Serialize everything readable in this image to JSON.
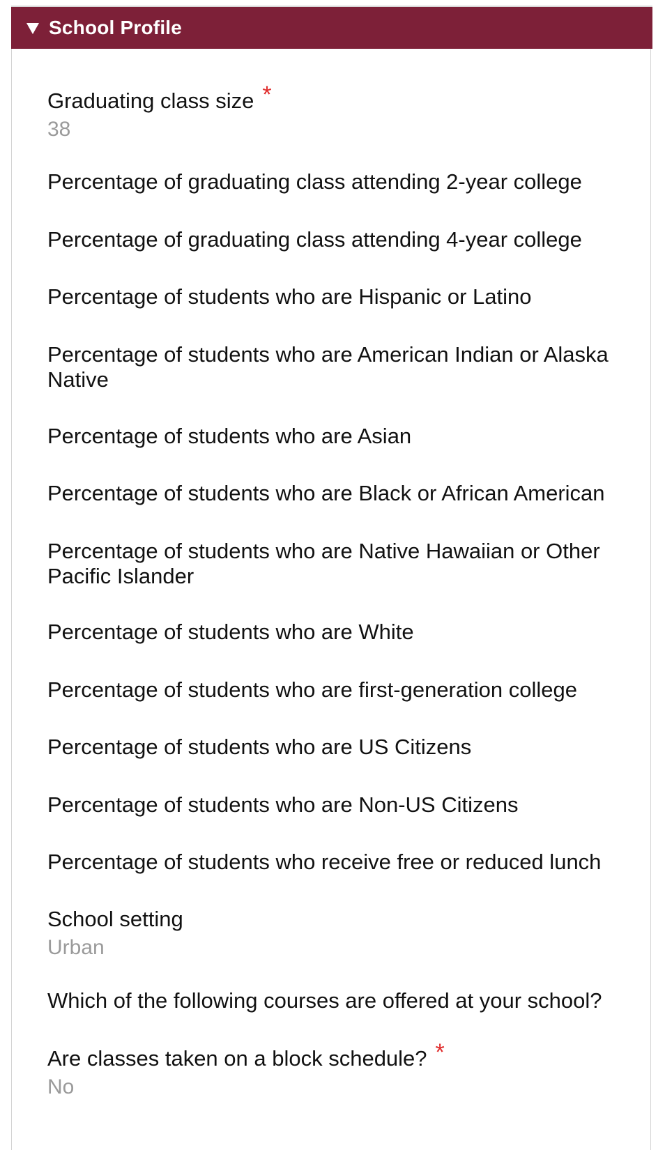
{
  "section": {
    "title": "School Profile",
    "icon": "triangle-down-icon",
    "colors": {
      "header_bg": "#7d2038",
      "header_text": "#ffffff",
      "required": "#e02b2b",
      "value_text": "#9a9a9a"
    }
  },
  "fields": [
    {
      "label": "Graduating class size",
      "required": true,
      "value": "38"
    },
    {
      "label": "Percentage of graduating class attending 2-year college"
    },
    {
      "label": "Percentage of graduating class attending 4-year college"
    },
    {
      "label": "Percentage of students who are Hispanic or Latino"
    },
    {
      "label": "Percentage of students who are American Indian or Alaska Native"
    },
    {
      "label": "Percentage of students who are Asian"
    },
    {
      "label": "Percentage of students who are Black or African American"
    },
    {
      "label": "Percentage of students who are Native Hawaiian or Other Pacific Islander"
    },
    {
      "label": "Percentage of students who are White"
    },
    {
      "label": "Percentage of students who are first-generation college"
    },
    {
      "label": "Percentage of students who are US Citizens"
    },
    {
      "label": "Percentage of students who are Non-US Citizens"
    },
    {
      "label": "Percentage of students who receive free or reduced lunch"
    },
    {
      "label": "School setting",
      "value": "Urban"
    },
    {
      "label": "Which of the following courses are offered at your school?"
    },
    {
      "label": "Are classes taken on a block schedule?",
      "required": true,
      "value": "No"
    }
  ],
  "required_marker": "*"
}
